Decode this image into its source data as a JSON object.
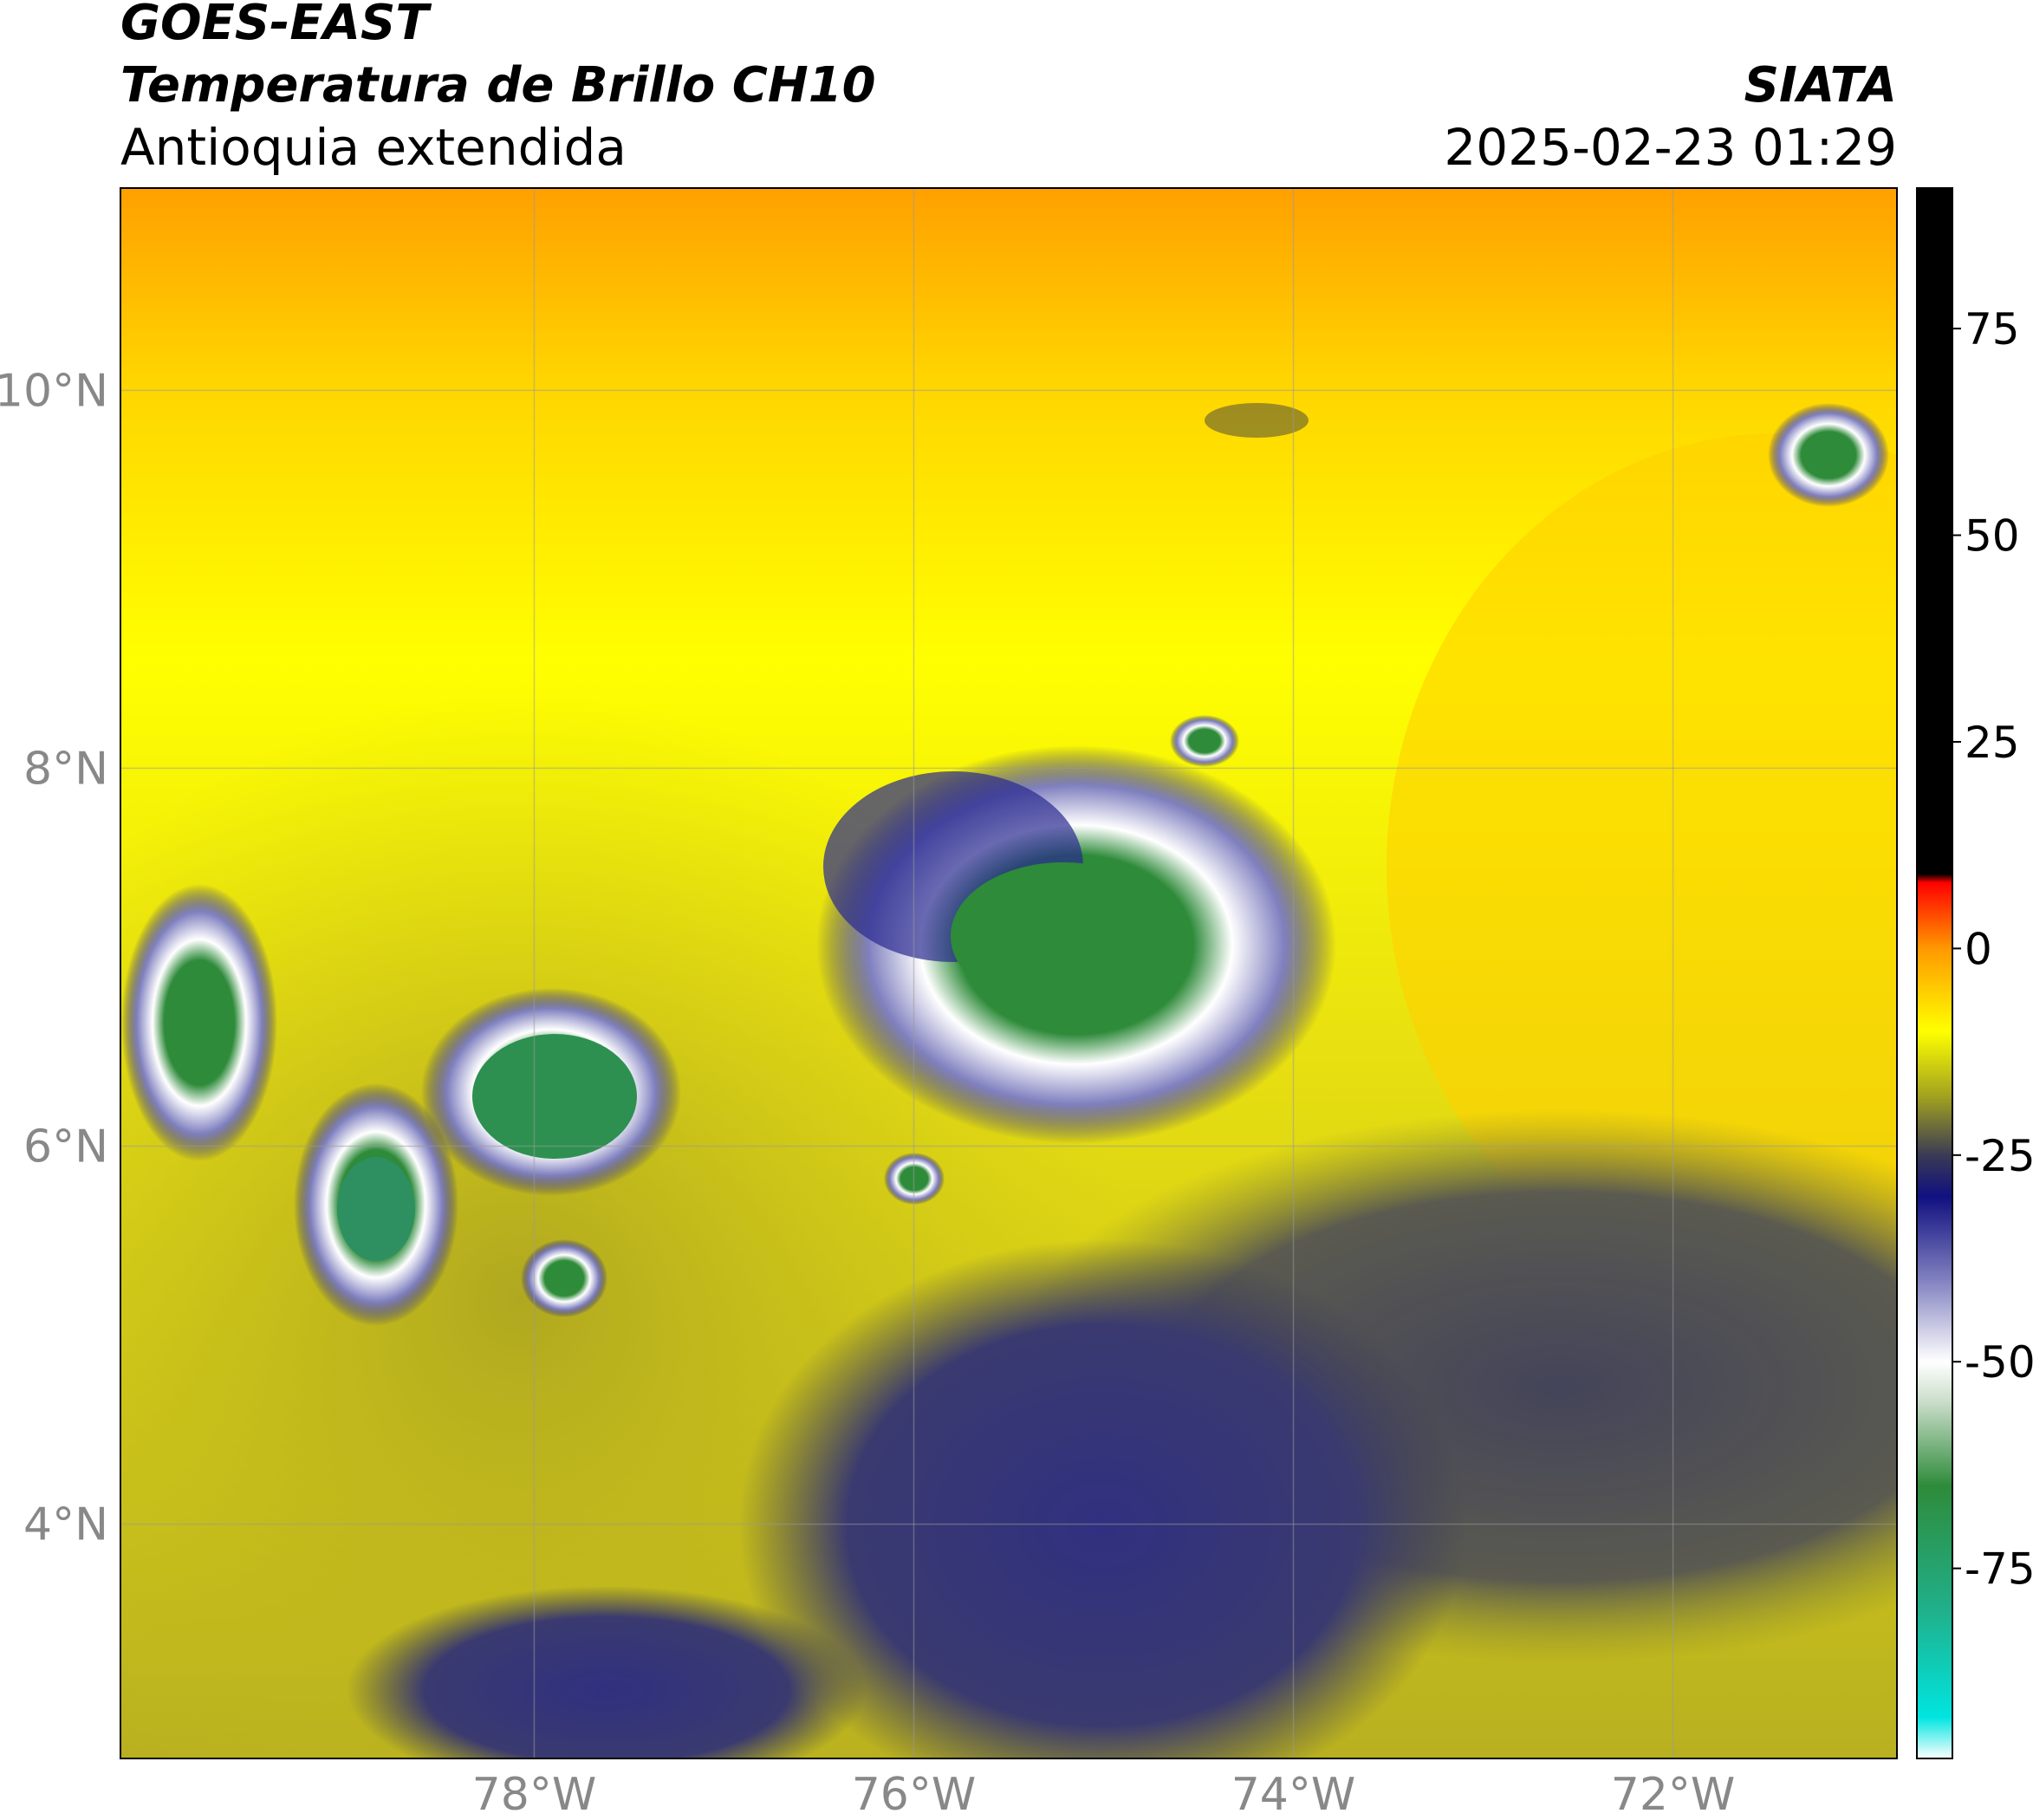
{
  "header": {
    "title": "GOES-EAST",
    "subtitle": "Temperatura de Brillo CH10",
    "region": "Antioquia extendida",
    "source": "SIATA",
    "datetime": "2025-02-23 01:29"
  },
  "map": {
    "xlim": [
      -80.18,
      -70.82
    ],
    "ylim": [
      2.76,
      11.07
    ],
    "grid": true,
    "xticks": [
      {
        "value": -78,
        "label": "78°W"
      },
      {
        "value": -76,
        "label": "76°W"
      },
      {
        "value": -74,
        "label": "74°W"
      },
      {
        "value": -72,
        "label": "72°W"
      }
    ],
    "yticks": [
      {
        "value": 4,
        "label": "4°N"
      },
      {
        "value": 6,
        "label": "6°N"
      },
      {
        "value": 8,
        "label": "8°N"
      },
      {
        "value": 10,
        "label": "10°N"
      }
    ]
  },
  "colorbar": {
    "lim": [
      -98,
      92
    ],
    "ticks": [
      75,
      50,
      25,
      0,
      -25,
      -50,
      -75
    ],
    "stops": [
      {
        "value": -98,
        "color": "#ffffff"
      },
      {
        "value": -93,
        "color": "#00e5e0"
      },
      {
        "value": -80,
        "color": "#20b08a"
      },
      {
        "value": -65,
        "color": "#2e8b3a"
      },
      {
        "value": -55,
        "color": "#c8dcc8"
      },
      {
        "value": -50,
        "color": "#ffffff"
      },
      {
        "value": -40,
        "color": "#8080c0"
      },
      {
        "value": -30,
        "color": "#101080"
      },
      {
        "value": -25,
        "color": "#3a3a55"
      },
      {
        "value": -18,
        "color": "#a0a020"
      },
      {
        "value": -10,
        "color": "#ffff00"
      },
      {
        "value": 0,
        "color": "#ff9900"
      },
      {
        "value": 8,
        "color": "#ff0000"
      },
      {
        "value": 9,
        "color": "#000000"
      },
      {
        "value": 92,
        "color": "#000000"
      }
    ]
  }
}
